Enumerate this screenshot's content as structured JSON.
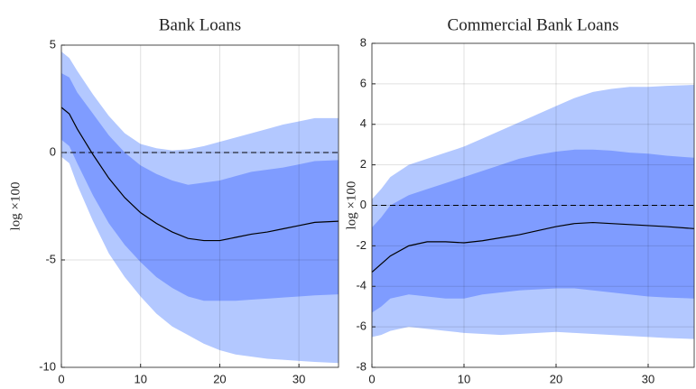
{
  "chart_data": [
    {
      "type": "line",
      "title": "Bank Loans",
      "y_label": "log ×100",
      "x": [
        0,
        1,
        2,
        4,
        6,
        8,
        10,
        12,
        14,
        16,
        18,
        20,
        22,
        24,
        26,
        28,
        30,
        32,
        35
      ],
      "xlim": [
        0,
        35
      ],
      "xticks": [
        0,
        10,
        20,
        30
      ],
      "ylim": [
        -10,
        5
      ],
      "yticks": [
        -10,
        -5,
        0,
        5
      ],
      "grid": true,
      "hline": 0,
      "bands": [
        {
          "color": "#b3c8ff",
          "upper": [
            4.7,
            4.4,
            3.8,
            2.7,
            1.7,
            0.9,
            0.4,
            0.2,
            0.1,
            0.15,
            0.3,
            0.5,
            0.7,
            0.9,
            1.1,
            1.3,
            1.45,
            1.6,
            1.6
          ],
          "lower": [
            -0.2,
            -0.5,
            -1.5,
            -3.2,
            -4.7,
            -5.8,
            -6.7,
            -7.5,
            -8.1,
            -8.5,
            -8.9,
            -9.2,
            -9.4,
            -9.5,
            -9.6,
            -9.65,
            -9.7,
            -9.75,
            -9.8
          ]
        },
        {
          "color": "#7f9cff",
          "upper": [
            3.7,
            3.5,
            2.8,
            1.8,
            0.8,
            0,
            -0.6,
            -1.0,
            -1.3,
            -1.5,
            -1.4,
            -1.3,
            -1.1,
            -0.9,
            -0.8,
            -0.7,
            -0.55,
            -0.4,
            -0.35
          ],
          "lower": [
            0.6,
            0.3,
            -0.5,
            -2.0,
            -3.3,
            -4.3,
            -5.1,
            -5.8,
            -6.3,
            -6.7,
            -6.9,
            -6.9,
            -6.9,
            -6.85,
            -6.8,
            -6.75,
            -6.7,
            -6.65,
            -6.6
          ]
        }
      ],
      "line": {
        "color": "#000000",
        "values": [
          2.1,
          1.8,
          1.1,
          -0.1,
          -1.2,
          -2.1,
          -2.8,
          -3.3,
          -3.7,
          -4.0,
          -4.1,
          -4.1,
          -3.95,
          -3.8,
          -3.7,
          -3.55,
          -3.4,
          -3.25,
          -3.2
        ]
      }
    },
    {
      "type": "line",
      "title": "Commercial Bank Loans",
      "y_label": "log ×100",
      "x": [
        0,
        1,
        2,
        4,
        6,
        8,
        10,
        12,
        14,
        16,
        18,
        20,
        22,
        24,
        26,
        28,
        30,
        32,
        35
      ],
      "xlim": [
        0,
        35
      ],
      "xticks": [
        0,
        10,
        20,
        30
      ],
      "ylim": [
        -8,
        8
      ],
      "yticks": [
        -8,
        -6,
        -4,
        -2,
        0,
        2,
        4,
        6,
        8
      ],
      "grid": true,
      "hline": 0,
      "bands": [
        {
          "color": "#b3c8ff",
          "upper": [
            0.3,
            0.8,
            1.4,
            2.0,
            2.3,
            2.6,
            2.9,
            3.3,
            3.7,
            4.1,
            4.5,
            4.9,
            5.3,
            5.6,
            5.75,
            5.85,
            5.85,
            5.9,
            5.95
          ],
          "lower": [
            -6.5,
            -6.4,
            -6.2,
            -6.0,
            -6.1,
            -6.2,
            -6.3,
            -6.35,
            -6.4,
            -6.35,
            -6.3,
            -6.25,
            -6.3,
            -6.35,
            -6.4,
            -6.45,
            -6.5,
            -6.55,
            -6.6
          ]
        },
        {
          "color": "#7f9cff",
          "upper": [
            -1.1,
            -0.6,
            0,
            0.5,
            0.8,
            1.1,
            1.4,
            1.7,
            2.0,
            2.3,
            2.5,
            2.65,
            2.75,
            2.75,
            2.7,
            2.6,
            2.55,
            2.45,
            2.35
          ],
          "lower": [
            -5.3,
            -5.0,
            -4.6,
            -4.4,
            -4.5,
            -4.6,
            -4.6,
            -4.4,
            -4.3,
            -4.2,
            -4.15,
            -4.1,
            -4.1,
            -4.2,
            -4.3,
            -4.4,
            -4.5,
            -4.55,
            -4.6
          ]
        }
      ],
      "line": {
        "color": "#000000",
        "values": [
          -3.3,
          -2.9,
          -2.5,
          -2.0,
          -1.8,
          -1.8,
          -1.85,
          -1.75,
          -1.6,
          -1.45,
          -1.25,
          -1.05,
          -0.9,
          -0.85,
          -0.9,
          -0.95,
          -1.0,
          -1.05,
          -1.15
        ]
      }
    }
  ]
}
